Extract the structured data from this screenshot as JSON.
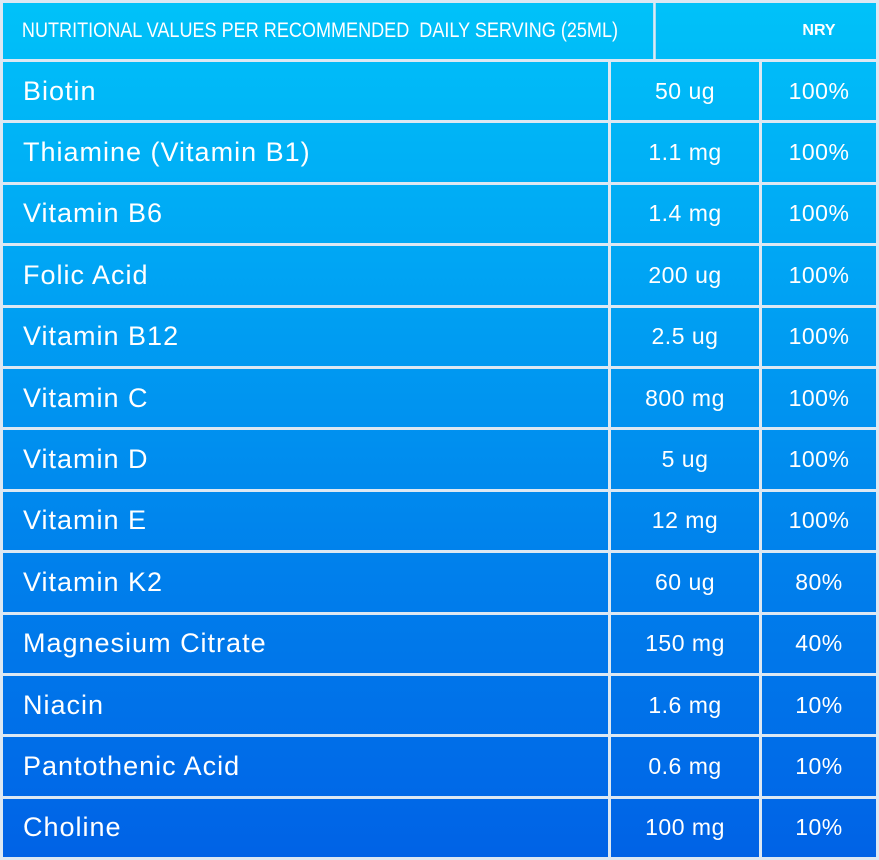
{
  "header": {
    "title": "NUTRITIONAL VALUES PER RECOMMENDED  DAILY SERVING (25ML)",
    "nry": "NRY"
  },
  "rows": [
    {
      "name": "Biotin",
      "amount": "50 ug",
      "nry": "100%"
    },
    {
      "name": "Thiamine (Vitamin B1)",
      "amount": "1.1 mg",
      "nry": "100%"
    },
    {
      "name": "Vitamin B6",
      "amount": "1.4 mg",
      "nry": "100%"
    },
    {
      "name": "Folic Acid",
      "amount": "200 ug",
      "nry": "100%"
    },
    {
      "name": "Vitamin B12",
      "amount": "2.5 ug",
      "nry": "100%"
    },
    {
      "name": "Vitamin C",
      "amount": "800 mg",
      "nry": "100%"
    },
    {
      "name": "Vitamin D",
      "amount": "5 ug",
      "nry": "100%"
    },
    {
      "name": "Vitamin E",
      "amount": "12 mg",
      "nry": "100%"
    },
    {
      "name": "Vitamin K2",
      "amount": "60 ug",
      "nry": "80%"
    },
    {
      "name": "Magnesium Citrate",
      "amount": "150 mg",
      "nry": "40%"
    },
    {
      "name": "Niacin",
      "amount": "1.6 mg",
      "nry": "10%"
    },
    {
      "name": "Pantothenic Acid",
      "amount": "0.6 mg",
      "nry": "10%"
    },
    {
      "name": "Choline",
      "amount": "100 mg",
      "nry": "10%"
    }
  ],
  "colors": {
    "top": "#00c2f9",
    "bottom": "#0062e6",
    "grid": "#dce8f3"
  }
}
